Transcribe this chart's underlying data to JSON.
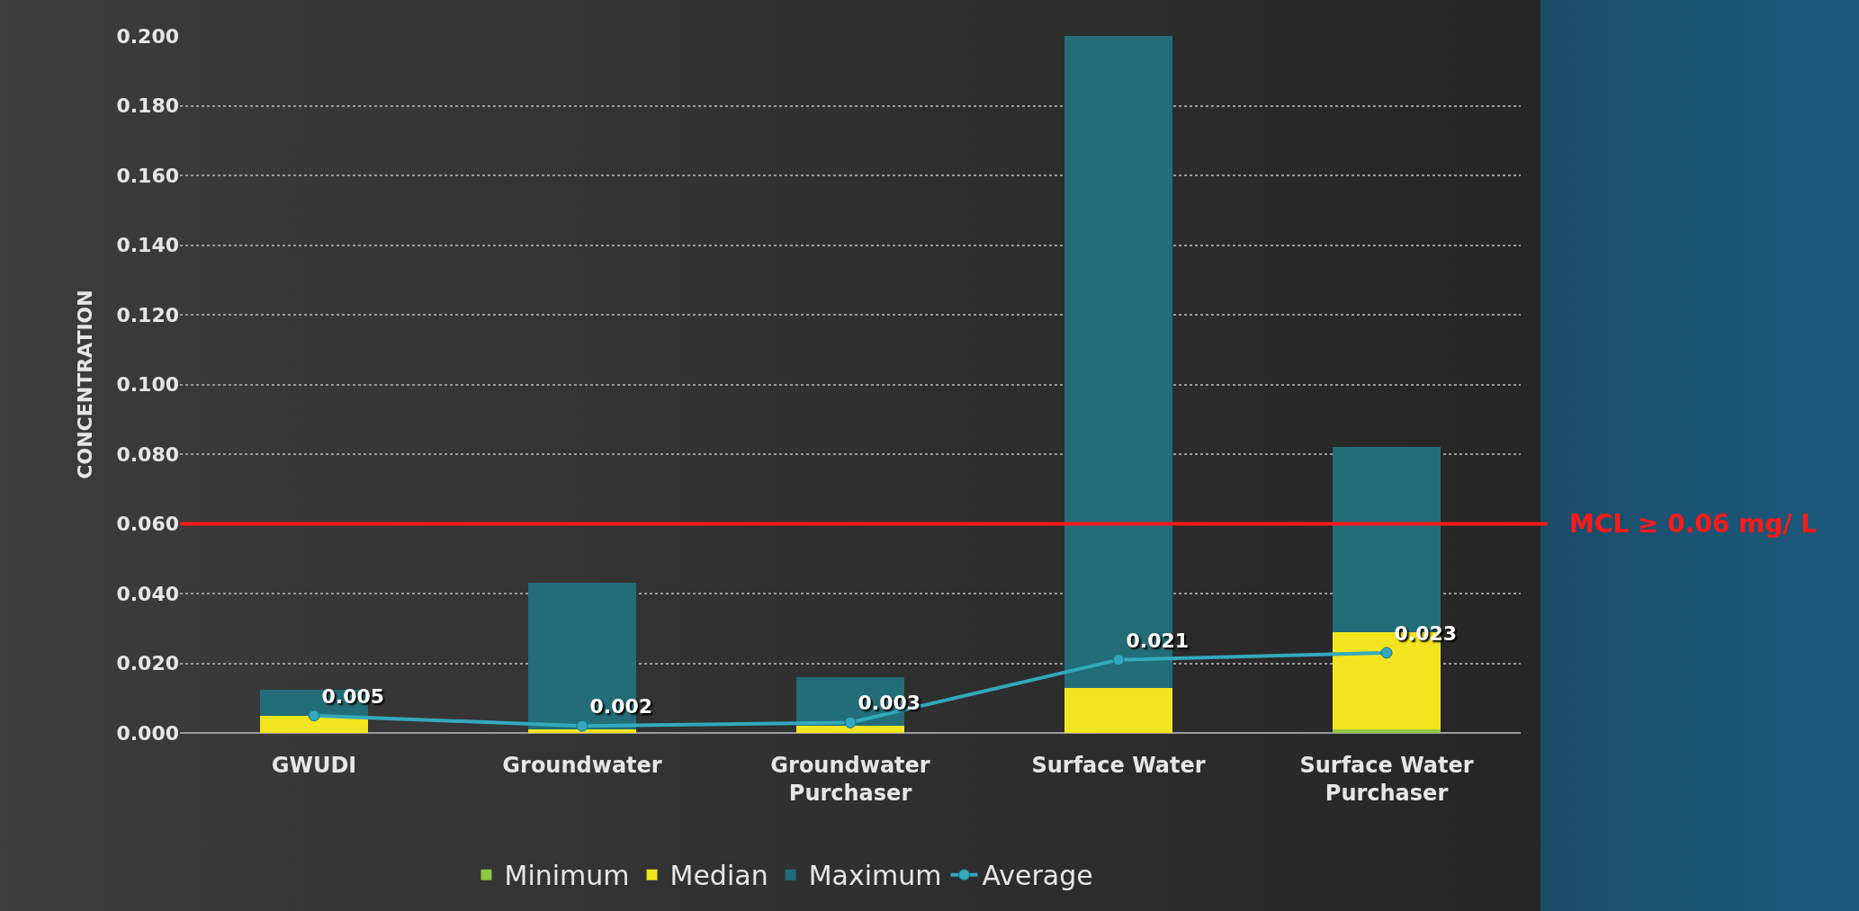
{
  "chart_data": {
    "type": "bar",
    "stacked": true,
    "ylabel": "CONCENTRATION",
    "categories": [
      "GWUDI",
      "Groundwater",
      "Groundwater Purchaser",
      "Surface Water",
      "Surface Water Purchaser"
    ],
    "series": [
      {
        "name": "Minimum",
        "color": "#8dc63f",
        "values": [
          0,
          0,
          0,
          0,
          0.001
        ]
      },
      {
        "name": "Median",
        "color": "#f2e41f",
        "values": [
          0.005,
          0.001,
          0.002,
          0.013,
          0.028
        ]
      },
      {
        "name": "Maximum",
        "color": "#236d78",
        "values": [
          0.0075,
          0.042,
          0.014,
          0.187,
          0.053
        ]
      },
      {
        "name": "Average",
        "type": "line",
        "color": "#33a9bd",
        "marker": "circle",
        "values": [
          0.005,
          0.002,
          0.003,
          0.021,
          0.023
        ],
        "value_labels": [
          "0.005",
          "0.002",
          "0.003",
          "0.021",
          "0.023"
        ]
      }
    ],
    "ylim": [
      0,
      0.2
    ],
    "yticks": [
      {
        "value": 0,
        "label": "0.000"
      },
      {
        "value": 0.02,
        "label": "0.020"
      },
      {
        "value": 0.04,
        "label": "0.040"
      },
      {
        "value": 0.06,
        "label": "0.060"
      },
      {
        "value": 0.08,
        "label": "0.080"
      },
      {
        "value": 0.1,
        "label": "0.100"
      },
      {
        "value": 0.12,
        "label": "0.120"
      },
      {
        "value": 0.14,
        "label": "0.140"
      },
      {
        "value": 0.16,
        "label": "0.160"
      },
      {
        "value": 0.18,
        "label": "0.180"
      },
      {
        "value": 0.2,
        "label": "0.200"
      }
    ],
    "grid": "y",
    "legend": "bottom",
    "ref_lines": [
      {
        "axis": "y",
        "value": 0.06,
        "label": "MCL ≥ 0.06 mg/ L",
        "color": "#ff1a1a"
      }
    ]
  }
}
